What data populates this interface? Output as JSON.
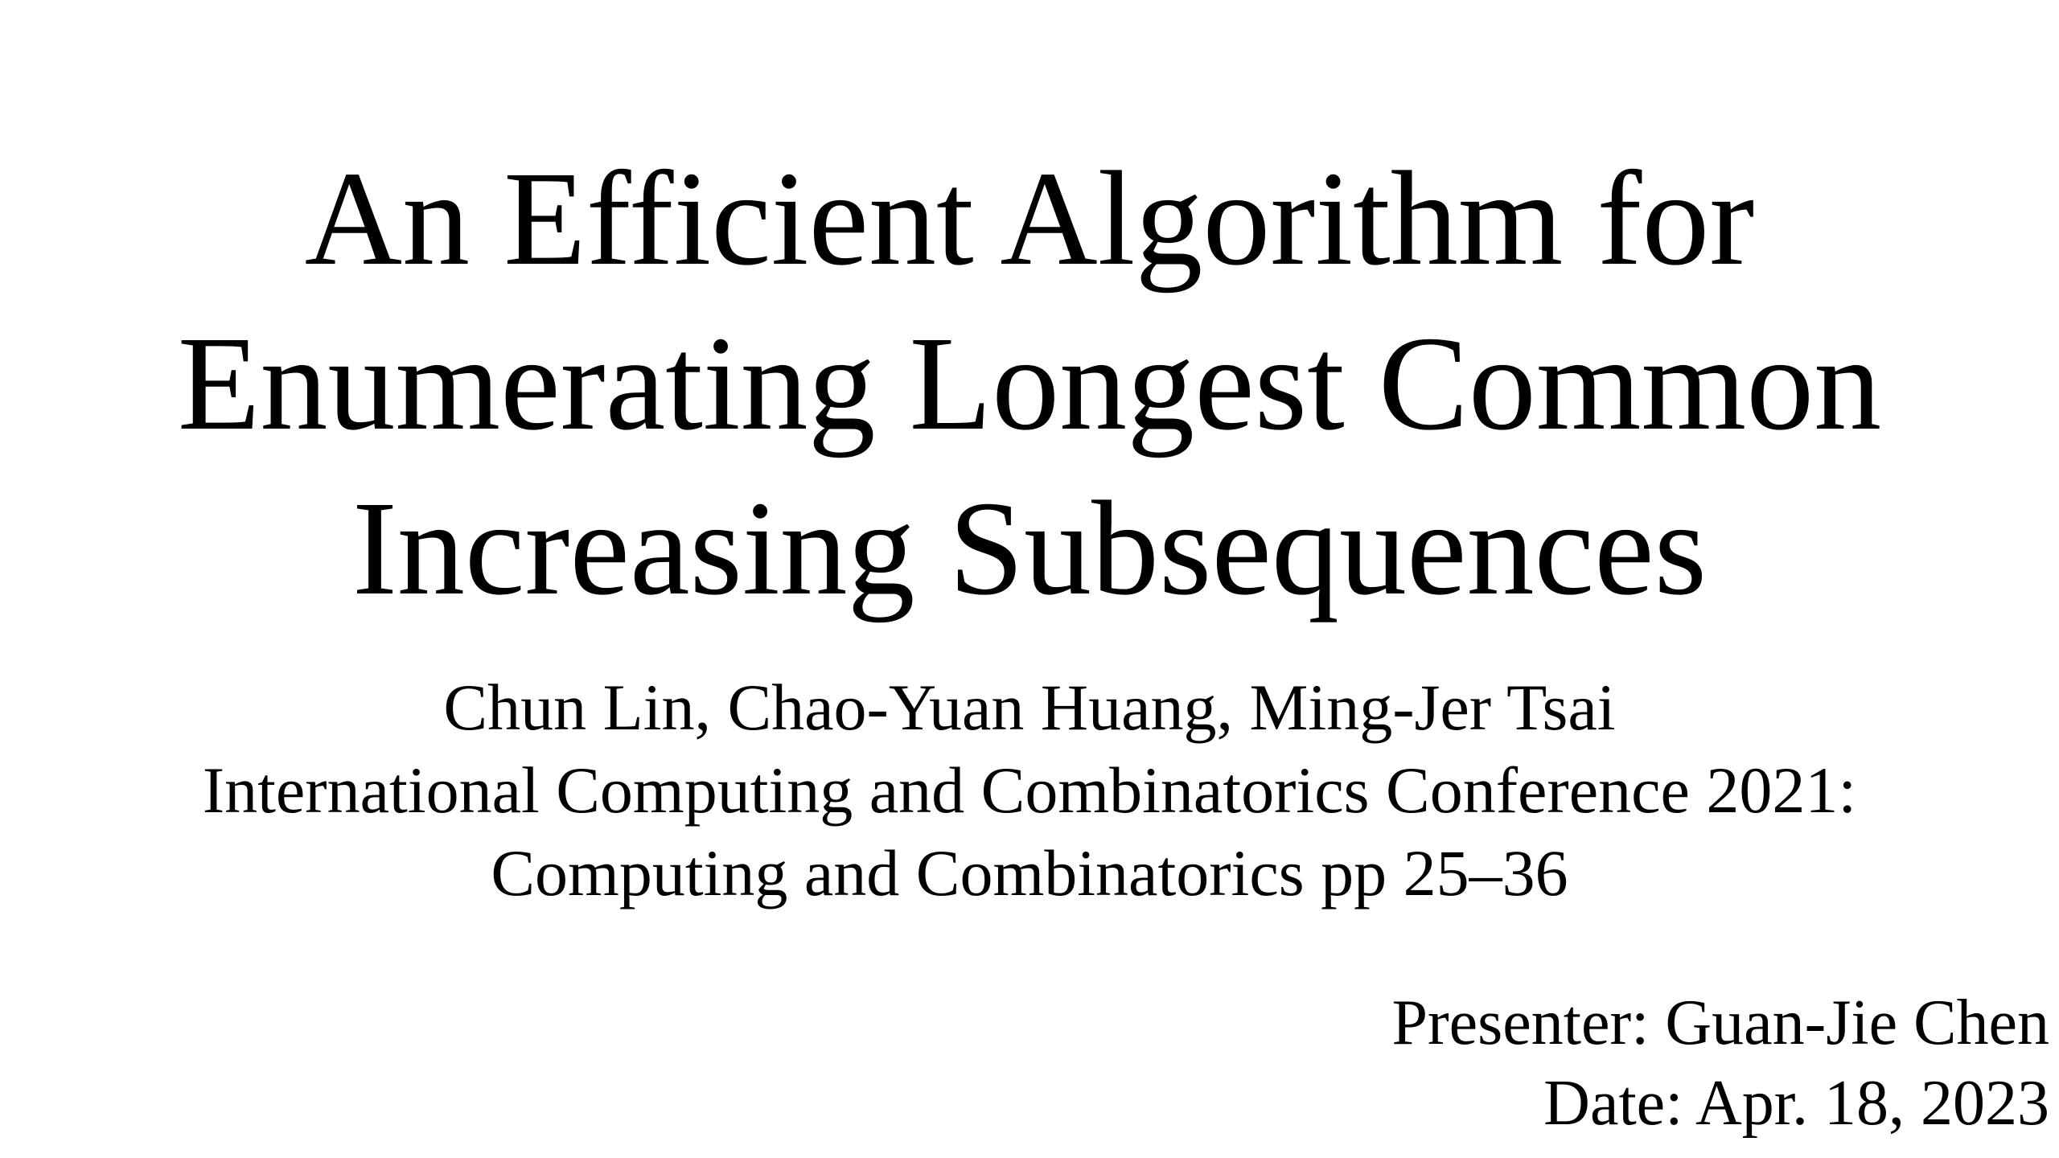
{
  "slide": {
    "title_lines": [
      "An Efficient Algorithm for",
      "Enumerating Longest Common",
      "Increasing Subsequences"
    ],
    "authors": "Chun Lin, Chao-Yuan Huang, Ming-Jer Tsai",
    "venue_lines": [
      "International Computing and Combinatorics Conference 2021:",
      "Computing and Combinatorics pp 25–36"
    ],
    "presenter": "Presenter: Guan-Jie Chen",
    "date": "Date: Apr. 18, 2023"
  }
}
